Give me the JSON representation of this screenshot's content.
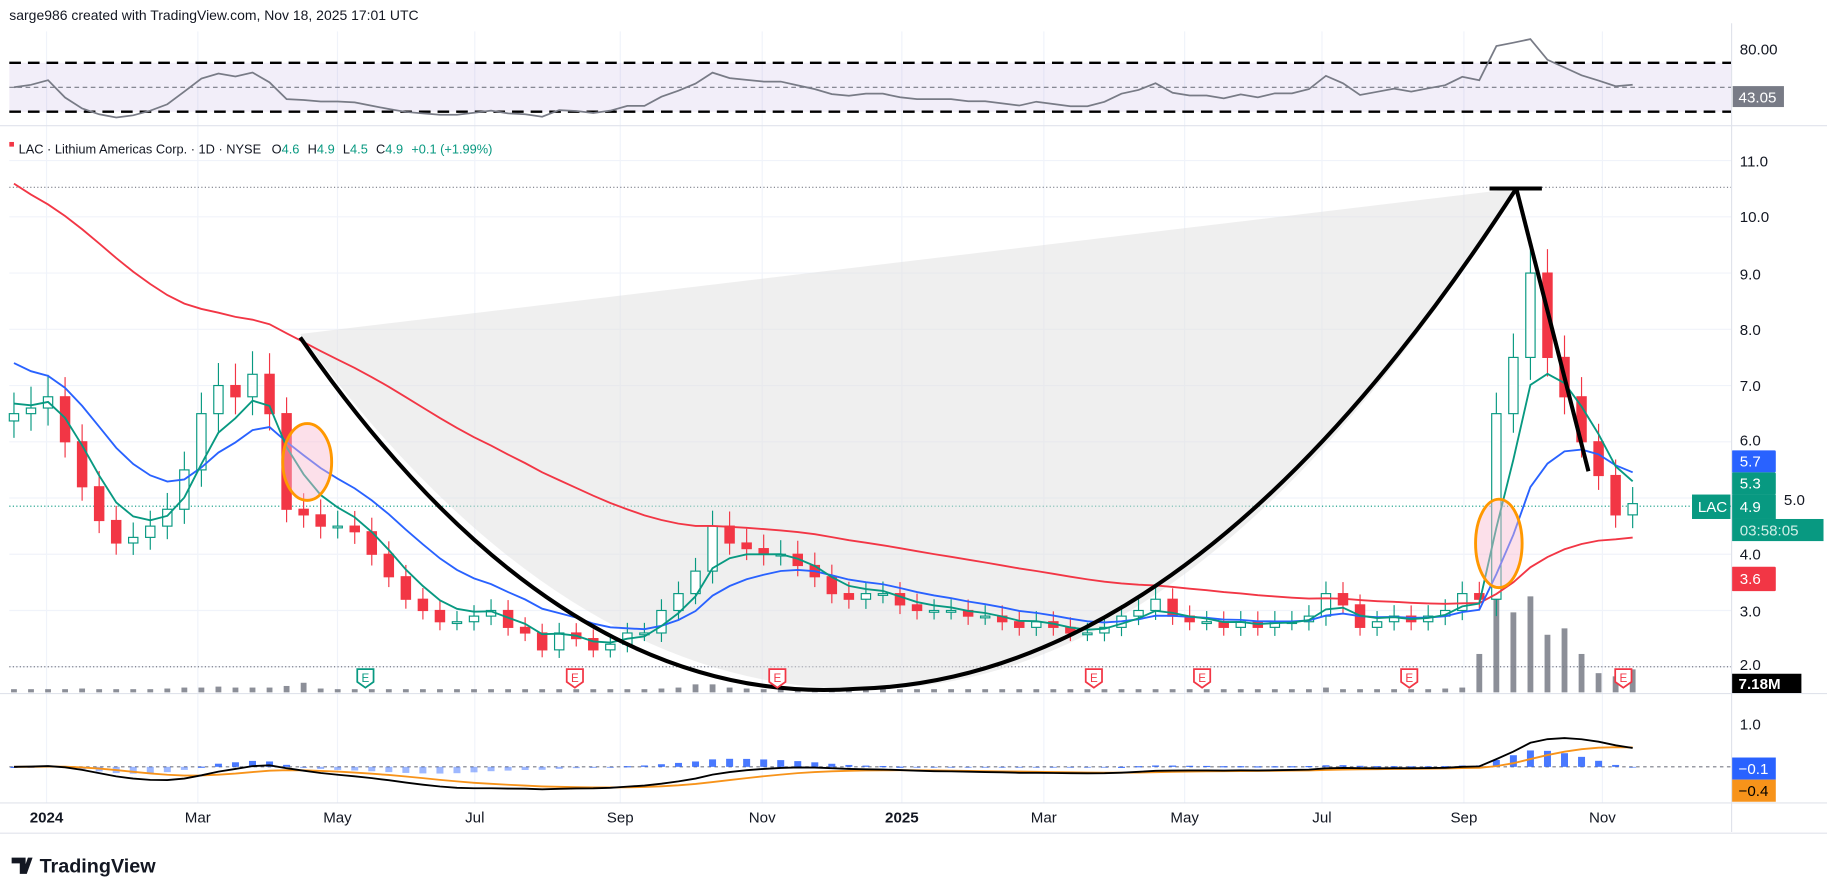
{
  "header": {
    "credit": "sarge986 created with TradingView.com, Nov 18, 2025 17:01 UTC"
  },
  "legend": {
    "symbol": "LAC · Lithium Americas Corp. · 1D · NYSE",
    "o_label": "O",
    "o": "4.6",
    "h_label": "H",
    "h": "4.9",
    "l_label": "L",
    "l": "4.5",
    "c_label": "C",
    "c": "4.9",
    "change": "+0.1 (+1.99%)"
  },
  "rsi": {
    "level_label": "80.00",
    "value": "43.05"
  },
  "price_axis": [
    "11.0",
    "10.0",
    "9.0",
    "8.0",
    "7.0",
    "6.0",
    "5.0",
    "4.0",
    "3.0",
    "2.0"
  ],
  "tags": {
    "blue_ma": "5.7",
    "green_ma": "5.3",
    "symbol": "LAC",
    "last": "4.9",
    "countdown": "03:58:05",
    "red_ma": "3.6",
    "volume": "7.18M"
  },
  "macd": {
    "axis_label": "1.0",
    "macd_value": "−0.1",
    "signal_value": "−0.4"
  },
  "time_axis": [
    "2024",
    "Mar",
    "May",
    "Jul",
    "Sep",
    "Nov",
    "2025",
    "Mar",
    "May",
    "Jul",
    "Sep",
    "Nov"
  ],
  "earnings_marker": "E",
  "logo": "TradingView",
  "colors": {
    "up": "#089981",
    "down": "#f23645",
    "ma_fast": "#089981",
    "ma_mid": "#2962ff",
    "ma_slow": "#f23645",
    "rsi": "#787b86",
    "macd": "#000000",
    "signal": "#f7931a",
    "hist": "#2962ff"
  },
  "chart_data": {
    "type": "candlestick",
    "title": "LAC · Lithium Americas Corp. · 1D · NYSE",
    "x_range": [
      "Dec 2023",
      "Nov 2025"
    ],
    "ylim": [
      2.0,
      11.0
    ],
    "closes": [
      6.5,
      6.6,
      6.8,
      6.0,
      5.2,
      4.6,
      4.2,
      4.3,
      4.5,
      4.8,
      5.5,
      6.5,
      7.0,
      6.8,
      7.2,
      6.5,
      4.8,
      4.7,
      4.5,
      4.5,
      4.4,
      4.0,
      3.6,
      3.2,
      3.0,
      2.8,
      2.8,
      2.9,
      3.0,
      2.7,
      2.6,
      2.3,
      2.6,
      2.5,
      2.3,
      2.4,
      2.6,
      2.6,
      3.0,
      3.3,
      3.7,
      4.5,
      4.2,
      4.1,
      4.0,
      4.0,
      3.8,
      3.6,
      3.3,
      3.2,
      3.3,
      3.3,
      3.1,
      3.0,
      3.0,
      3.0,
      2.9,
      2.9,
      2.8,
      2.7,
      2.8,
      2.7,
      2.6,
      2.6,
      2.7,
      2.9,
      3.0,
      3.2,
      2.9,
      2.8,
      2.8,
      2.7,
      2.8,
      2.7,
      2.8,
      2.8,
      2.9,
      3.3,
      3.1,
      2.7,
      2.8,
      2.9,
      2.8,
      2.9,
      3.0,
      3.3,
      3.2,
      6.5,
      7.5,
      9.0,
      7.5,
      6.8,
      6.0,
      5.4,
      4.7,
      4.9
    ],
    "volumes_m": [
      1,
      1,
      1,
      1,
      1.2,
      1,
      1,
      1,
      1,
      1.2,
      1.5,
      1.5,
      1.8,
      1.5,
      1.5,
      1.5,
      2,
      3,
      1.2,
      1,
      1,
      1,
      1,
      1,
      1,
      1,
      1,
      1,
      1,
      1,
      1,
      1,
      1,
      1,
      1,
      1,
      1,
      1,
      1.2,
      1.5,
      2.5,
      2.5,
      1.5,
      1.2,
      1,
      1,
      1,
      1,
      1,
      1,
      1,
      1,
      1,
      1,
      1,
      1,
      1,
      1,
      1,
      1,
      1,
      1,
      1,
      1,
      1,
      1,
      1,
      1,
      1,
      1,
      1,
      1,
      1,
      1,
      1,
      1,
      1,
      1.5,
      1,
      1,
      1,
      1,
      1,
      1,
      1.2,
      1.5,
      12,
      40,
      25,
      30,
      18,
      20,
      12,
      6,
      5,
      7.18
    ],
    "moving_averages": [
      {
        "name": "fast",
        "last": 5.3
      },
      {
        "name": "mid",
        "last": 5.7
      },
      {
        "name": "slow",
        "last": 3.6
      }
    ],
    "rsi_levels": [
      70,
      50,
      30
    ],
    "rsi_last": 43.05,
    "macd_last": -0.1,
    "signal_last": -0.4
  }
}
